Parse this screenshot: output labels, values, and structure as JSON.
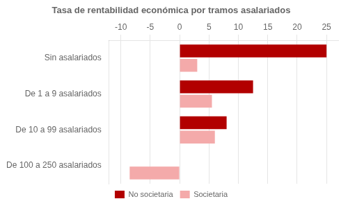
{
  "chart_data": {
    "type": "bar",
    "orientation": "horizontal",
    "title": "Tasa de rentabilidad económica por tramos asalariados",
    "categories": [
      "Sin asalariados",
      "De 1 a 9 asalariados",
      "De 10 a 99 asalariados",
      "De 100 a 250 asalariados"
    ],
    "series": [
      {
        "name": "No societaria",
        "color": "#B20000",
        "values": [
          25.0,
          12.5,
          8.0,
          0.0
        ]
      },
      {
        "name": "Societaria",
        "color": "#F4AAAA",
        "values": [
          3.0,
          5.5,
          6.0,
          -8.5
        ]
      }
    ],
    "xlim": [
      -12,
      27
    ],
    "xticks": [
      -10,
      -5,
      0,
      5,
      10,
      15,
      20,
      25
    ],
    "grid": true,
    "legend": "bottom"
  }
}
